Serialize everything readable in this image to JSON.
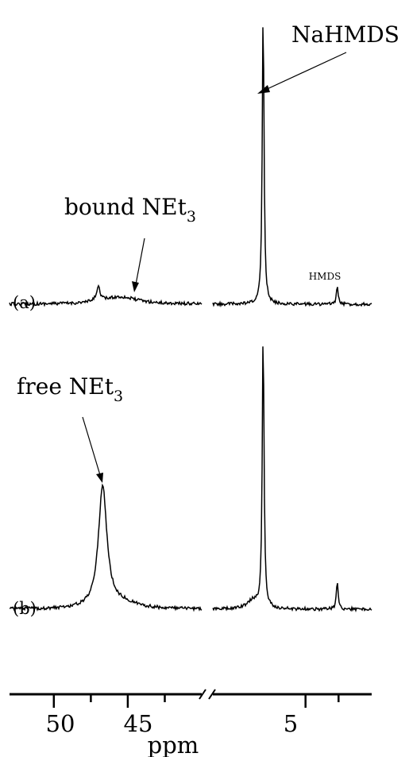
{
  "chart_data": {
    "type": "line",
    "title": "",
    "xlabel": "ppm",
    "ylabel": "",
    "x_axis": {
      "reversed": true,
      "broken": true,
      "segments": [
        {
          "xlim": [
            53,
            40
          ],
          "ticks": [
            50,
            45
          ]
        },
        {
          "xlim": [
            12,
            0
          ],
          "ticks": [
            5
          ]
        }
      ],
      "tick_labels": [
        "50",
        "45",
        "5"
      ]
    },
    "spectra": [
      {
        "label": "(a)",
        "peaks": [
          {
            "ppm": 47.0,
            "height": 0.05,
            "width": 0.15
          },
          {
            "ppm": 45.5,
            "height": 0.025,
            "width": 1.4
          },
          {
            "ppm": 8.2,
            "height": 1.0,
            "width": 0.08
          },
          {
            "ppm": 2.6,
            "height": 0.06,
            "width": 0.08
          }
        ],
        "annotations": [
          {
            "text": "NaHMDS",
            "ppm": 8.2
          },
          {
            "text": "bound NEt",
            "sub": "3",
            "ppm": 45.5
          },
          {
            "text": "HMDS",
            "ppm": 2.6
          }
        ]
      },
      {
        "label": "(b)",
        "peaks": [
          {
            "ppm": 46.7,
            "height": 0.44,
            "width": 0.35
          },
          {
            "ppm": 45.3,
            "height": 0.02,
            "width": 1.2
          },
          {
            "ppm": 8.2,
            "height": 1.0,
            "width": 0.08
          },
          {
            "ppm": 9.0,
            "height": 0.03,
            "width": 0.5
          },
          {
            "ppm": 2.6,
            "height": 0.1,
            "width": 0.08
          }
        ],
        "annotations": [
          {
            "text": "free NEt",
            "sub": "3",
            "ppm": 46.7
          }
        ]
      }
    ],
    "grid": false,
    "legend": "none"
  }
}
